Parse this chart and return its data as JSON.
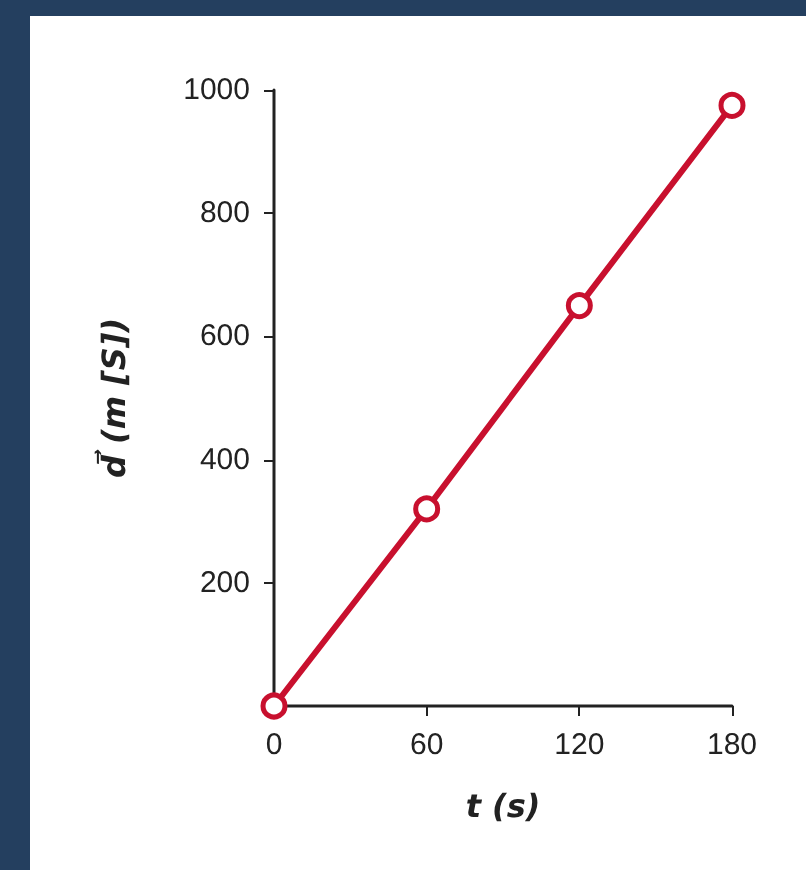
{
  "chart_data": {
    "type": "line",
    "xlabel": "t (s)",
    "ylabel": "d⃗ (m [S])",
    "x": [
      0,
      60,
      120,
      180
    ],
    "series": [
      {
        "color": "#c8102e",
        "values": [
          0,
          320,
          650,
          975
        ]
      }
    ],
    "xlim": [
      0,
      180
    ],
    "xticks": [
      0,
      60,
      120,
      180
    ],
    "ylim": [
      0,
      1000
    ],
    "yticks": [
      {
        "value": 0,
        "label": null
      },
      200,
      400,
      600,
      800,
      1000
    ],
    "grid": false,
    "marker": "circle",
    "line_style": "solid"
  }
}
